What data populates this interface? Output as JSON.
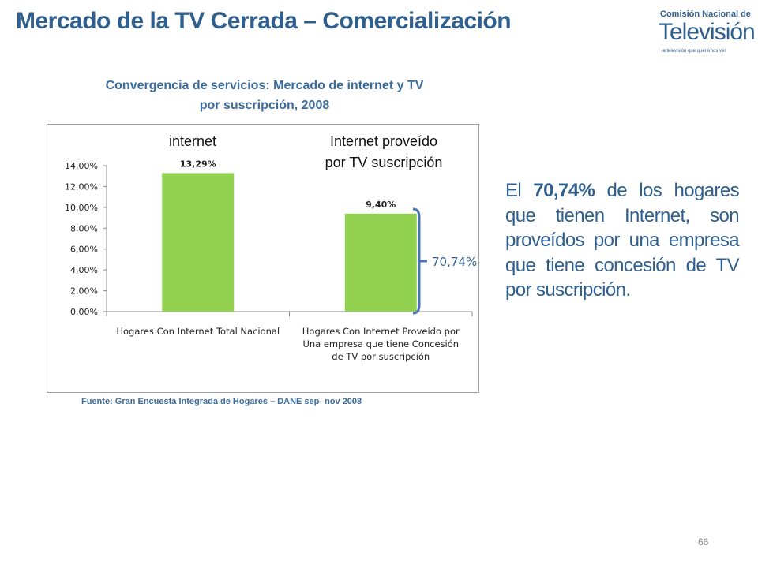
{
  "slide": {
    "title": "Mercado de la TV Cerrada – Comercialización",
    "page_number": "66",
    "logo": {
      "line1": "Comisión Nacional de",
      "line2": "Televisión",
      "tagline": "la televisión que queremos ver"
    },
    "side_text": {
      "prefix": "El ",
      "highlight": "70,74%",
      "suffix": " de los hogares que tienen Internet, son proveídos por una empresa que tiene concesión de TV por suscripción."
    },
    "source": "Fuente: Gran Encuesta Integrada de Hogares – DANE sep- nov 2008"
  },
  "chart_data": {
    "type": "bar",
    "title_line1": "Convergencia de servicios: Mercado de internet y TV",
    "title_line2": "por suscripción, 2008",
    "categories": [
      [
        "Hogares Con Internet Total Nacional"
      ],
      [
        "Hogares Con Internet Proveído por",
        "Una empresa que tiene Concesión",
        "de TV por suscripción"
      ]
    ],
    "values": [
      13.29,
      9.4
    ],
    "data_labels": [
      "13,29%",
      "9,40%"
    ],
    "bar_header_labels": [
      [
        "internet"
      ],
      [
        "Internet proveído",
        "por TV suscripción"
      ]
    ],
    "ylim": [
      0,
      14
    ],
    "yticks": [
      "0,00%",
      "2,00%",
      "4,00%",
      "6,00%",
      "8,00%",
      "10,00%",
      "12,00%",
      "14,00%"
    ],
    "bracket_label": "70,74%",
    "bar_color": "#92d050",
    "bracket_color": "#4a73b5",
    "grid": false
  }
}
